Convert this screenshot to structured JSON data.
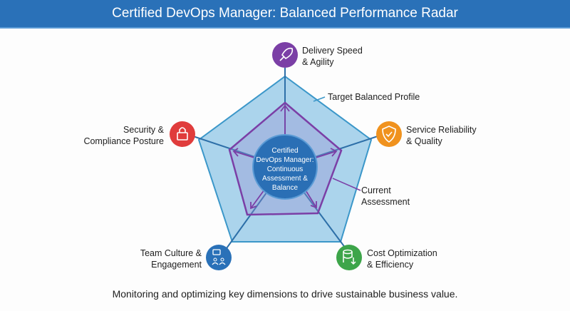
{
  "title": "Certified DevOps Manager: Balanced Performance Radar",
  "center": {
    "lines": [
      "Certified",
      "DevOps Manager:",
      "Continuous",
      "Assessment &",
      "Balance"
    ]
  },
  "dimensions": [
    {
      "line1": "Delivery Speed",
      "line2": "& Agility",
      "icon": "rocket-icon",
      "color": "#7b3fa6"
    },
    {
      "line1": "Service Reliability",
      "line2": "& Quality",
      "icon": "shield-check-icon",
      "color": "#f0921e"
    },
    {
      "line1": "Cost Optimization",
      "line2": "& Efficiency",
      "icon": "database-down-icon",
      "color": "#3da54a"
    },
    {
      "line1": "Team Culture &",
      "line2": "Engagement",
      "icon": "team-chat-icon",
      "color": "#2a71b8"
    },
    {
      "line1": "Security &",
      "line2": "Compliance Posture",
      "icon": "lock-icon",
      "color": "#e03c3c"
    }
  ],
  "annotations": {
    "target": "Target Balanced Profile",
    "current_line1": "Current",
    "current_line2": "Assessment"
  },
  "footer": "Monitoring and optimizing key dimensions to drive sustainable business value.",
  "colors": {
    "header": "#2a71b8",
    "target_fill": "#a9d3ea",
    "current_stroke": "#7b3fa6",
    "center": "#2a6fb5"
  }
}
